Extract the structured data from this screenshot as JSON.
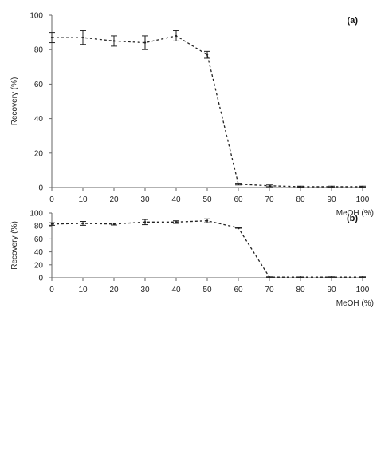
{
  "chart_data": [
    {
      "type": "line",
      "panel_label": "(a)",
      "xlabel": "MeOH (%)",
      "ylabel": "Recovery (%)",
      "xlim": [
        0,
        100
      ],
      "ylim": [
        0,
        100
      ],
      "x_ticks": [
        0,
        10,
        20,
        30,
        40,
        50,
        60,
        70,
        80,
        90,
        100
      ],
      "y_ticks": [
        0,
        20,
        40,
        60,
        80,
        100
      ],
      "grid": false,
      "series": [
        {
          "x": [
            0,
            10,
            20,
            30,
            40,
            50,
            60,
            70,
            80,
            90,
            100
          ],
          "y": [
            87,
            87,
            85,
            84,
            88,
            77,
            2,
            1,
            0.5,
            0.5,
            0.5
          ],
          "error": [
            3,
            4,
            3,
            4,
            3,
            2,
            0.5,
            0.5,
            0.3,
            0.3,
            0.3
          ]
        }
      ]
    },
    {
      "type": "line",
      "panel_label": "(b)",
      "xlabel": "MeOH (%)",
      "ylabel": "Recovery (%)",
      "xlim": [
        0,
        100
      ],
      "ylim": [
        0,
        100
      ],
      "x_ticks": [
        0,
        10,
        20,
        30,
        40,
        50,
        60,
        70,
        80,
        90,
        100
      ],
      "y_ticks": [
        0,
        20,
        40,
        60,
        80,
        100
      ],
      "grid": false,
      "series": [
        {
          "x": [
            0,
            10,
            20,
            30,
            40,
            50,
            60,
            70,
            80,
            90,
            100
          ],
          "y": [
            83,
            84,
            83,
            86,
            86,
            88,
            77,
            1,
            1,
            1,
            1
          ],
          "error": [
            2,
            3,
            1.5,
            4,
            2,
            3,
            0.5,
            0.5,
            0.3,
            0.5,
            0.5
          ]
        }
      ]
    }
  ]
}
